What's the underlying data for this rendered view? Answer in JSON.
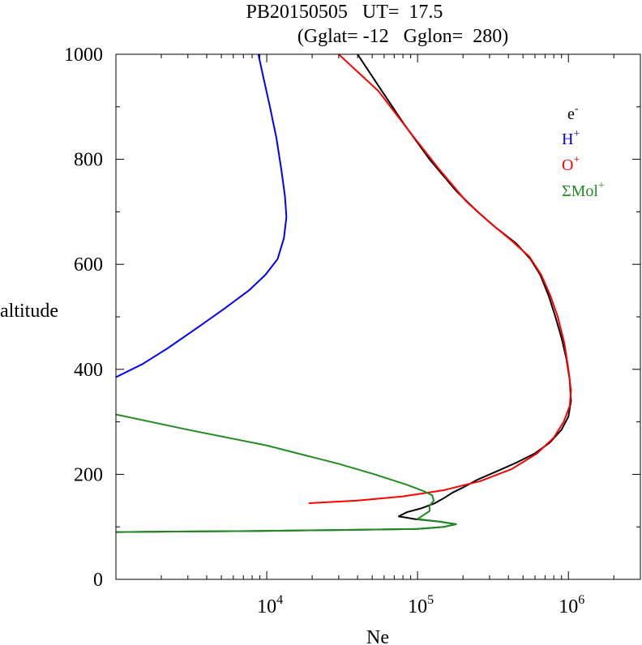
{
  "chart_data": {
    "type": "line",
    "title_line1": "PB20150505   UT=  17.5",
    "title_line2": "(Gglat= -12   Gglon=  280)",
    "xlabel": "Ne",
    "ylabel": "altitude",
    "x_scale": "log",
    "xlim": [
      1000,
      3000000
    ],
    "ylim": [
      0,
      1000
    ],
    "y_ticks": [
      0,
      200,
      400,
      600,
      800,
      1000
    ],
    "y_tick_labels": [
      "0",
      "200",
      "400",
      "600",
      "800",
      "1000"
    ],
    "x_major_ticks": [
      10000,
      100000,
      1000000
    ],
    "x_tick_labels": [
      {
        "base": "10",
        "exp": "4"
      },
      {
        "base": "10",
        "exp": "5"
      },
      {
        "base": "10",
        "exp": "6"
      }
    ],
    "grid": false,
    "legend_position": "top-right",
    "series": [
      {
        "name": "e",
        "name_sup": "-",
        "color": "#000000",
        "points": [
          [
            1000,
            90
          ],
          [
            2500,
            91
          ],
          [
            8000,
            92
          ],
          [
            30000,
            94
          ],
          [
            100000,
            96
          ],
          [
            150000,
            100
          ],
          [
            180000,
            105
          ],
          [
            140000,
            110
          ],
          [
            95000,
            115
          ],
          [
            75000,
            120
          ],
          [
            85000,
            128
          ],
          [
            105000,
            135
          ],
          [
            130000,
            145
          ],
          [
            150000,
            155
          ],
          [
            170000,
            165
          ],
          [
            200000,
            175
          ],
          [
            250000,
            190
          ],
          [
            330000,
            205
          ],
          [
            450000,
            222
          ],
          [
            600000,
            240
          ],
          [
            750000,
            260
          ],
          [
            900000,
            285
          ],
          [
            1000000,
            310
          ],
          [
            1040000,
            340
          ],
          [
            1020000,
            380
          ],
          [
            970000,
            420
          ],
          [
            900000,
            460
          ],
          [
            820000,
            500
          ],
          [
            740000,
            540
          ],
          [
            650000,
            580
          ],
          [
            560000,
            610
          ],
          [
            450000,
            640
          ],
          [
            330000,
            670
          ],
          [
            250000,
            700
          ],
          [
            180000,
            740
          ],
          [
            120000,
            800
          ],
          [
            80000,
            870
          ],
          [
            55000,
            940
          ],
          [
            40000,
            1000
          ]
        ]
      },
      {
        "name": "H",
        "name_sup": "+",
        "color": "#0000ff",
        "points": [
          [
            1000,
            385
          ],
          [
            1500,
            410
          ],
          [
            2200,
            440
          ],
          [
            3500,
            480
          ],
          [
            5200,
            515
          ],
          [
            7600,
            550
          ],
          [
            9800,
            580
          ],
          [
            11800,
            610
          ],
          [
            13000,
            650
          ],
          [
            13500,
            690
          ],
          [
            13200,
            730
          ],
          [
            12500,
            780
          ],
          [
            11600,
            840
          ],
          [
            10500,
            900
          ],
          [
            9600,
            950
          ],
          [
            8800,
            1000
          ]
        ]
      },
      {
        "name": "O",
        "name_sup": "+",
        "color": "#ff0000",
        "points": [
          [
            19000,
            145
          ],
          [
            40000,
            150
          ],
          [
            80000,
            158
          ],
          [
            150000,
            170
          ],
          [
            260000,
            187
          ],
          [
            420000,
            210
          ],
          [
            620000,
            240
          ],
          [
            800000,
            270
          ],
          [
            930000,
            300
          ],
          [
            1020000,
            330
          ],
          [
            1040000,
            360
          ],
          [
            1000000,
            400
          ],
          [
            940000,
            450
          ],
          [
            850000,
            500
          ],
          [
            760000,
            540
          ],
          [
            660000,
            580
          ],
          [
            550000,
            615
          ],
          [
            420000,
            645
          ],
          [
            300000,
            680
          ],
          [
            210000,
            720
          ],
          [
            140000,
            780
          ],
          [
            90000,
            850
          ],
          [
            55000,
            930
          ],
          [
            30000,
            1000
          ]
        ]
      },
      {
        "name": "ΣMol",
        "name_sup": "+",
        "color": "#228b22",
        "points": [
          [
            1000,
            314
          ],
          [
            3000,
            285
          ],
          [
            10000,
            255
          ],
          [
            30000,
            220
          ],
          [
            52000,
            200
          ],
          [
            85000,
            180
          ],
          [
            110000,
            168
          ],
          [
            125000,
            160
          ],
          [
            128000,
            150
          ],
          [
            120000,
            140
          ],
          [
            120000,
            130
          ],
          [
            100000,
            115
          ],
          [
            140000,
            110
          ],
          [
            180000,
            105
          ],
          [
            150000,
            100
          ],
          [
            100000,
            96
          ],
          [
            30000,
            94
          ],
          [
            8000,
            92
          ],
          [
            2500,
            91
          ],
          [
            1000,
            90
          ]
        ]
      }
    ]
  }
}
